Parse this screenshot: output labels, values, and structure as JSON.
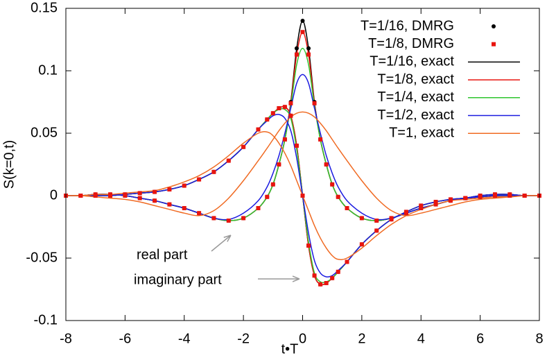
{
  "chart_data": {
    "type": "line",
    "xlabel": "t•T",
    "ylabel": "S(k=0,t)",
    "xlim": [
      -8,
      8
    ],
    "ylim": [
      -0.1,
      0.15
    ],
    "xticks": [
      -8,
      -6,
      -4,
      -2,
      0,
      2,
      4,
      6,
      8
    ],
    "yticks": [
      -0.1,
      -0.05,
      0,
      0.05,
      0.1,
      0.15
    ],
    "grid": false,
    "legend": "top-right",
    "annotations": [
      "real part",
      "imaginary part"
    ],
    "x": [
      -8,
      -7.5,
      -7,
      -6.5,
      -6,
      -5.5,
      -5,
      -4.5,
      -4,
      -3.5,
      -3,
      -2.5,
      -2,
      -1.5,
      -1.2,
      -1,
      -0.8,
      -0.6,
      -0.4,
      -0.2,
      0,
      0.2,
      0.4,
      0.6,
      0.8,
      1,
      1.2,
      1.5,
      2,
      2.5,
      3,
      3.5,
      4,
      4.5,
      5,
      5.5,
      6,
      6.5,
      7,
      7.5,
      8
    ],
    "series": [
      {
        "name": "T=1/16, DMRG",
        "color": "#000000",
        "style": "points",
        "marker": "circle",
        "values": [
          0,
          0,
          0.001,
          0.001,
          0,
          -0.002,
          -0.004,
          -0.007,
          -0.01,
          -0.014,
          -0.018,
          -0.02,
          -0.018,
          -0.01,
          -0.001,
          0.009,
          0.025,
          0.045,
          0.075,
          0.118,
          0.14,
          0.118,
          0.075,
          0.045,
          0.025,
          0.009,
          -0.001,
          -0.01,
          -0.018,
          -0.02,
          -0.018,
          -0.014,
          -0.01,
          -0.007,
          -0.004,
          -0.002,
          0,
          0.001,
          0.001,
          0,
          0
        ],
        "imag": [
          0,
          0,
          0,
          0,
          0.001,
          0.002,
          0.003,
          0.005,
          0.008,
          0.013,
          0.019,
          0.028,
          0.039,
          0.053,
          0.061,
          0.066,
          0.07,
          0.071,
          0.064,
          0.04,
          0,
          -0.04,
          -0.064,
          -0.071,
          -0.07,
          -0.066,
          -0.061,
          -0.053,
          -0.039,
          -0.028,
          -0.019,
          -0.013,
          -0.008,
          -0.005,
          -0.003,
          -0.002,
          -0.001,
          0,
          0,
          0,
          0
        ]
      },
      {
        "name": "T=1/8, DMRG",
        "color": "#e8150f",
        "style": "points",
        "marker": "square",
        "values": [
          0,
          0,
          0.001,
          0.001,
          0,
          -0.002,
          -0.004,
          -0.007,
          -0.01,
          -0.014,
          -0.018,
          -0.02,
          -0.018,
          -0.01,
          -0.001,
          0.009,
          0.025,
          0.045,
          0.074,
          0.113,
          0.131,
          0.113,
          0.074,
          0.045,
          0.025,
          0.009,
          -0.001,
          -0.01,
          -0.018,
          -0.02,
          -0.018,
          -0.014,
          -0.01,
          -0.007,
          -0.004,
          -0.002,
          0,
          0.001,
          0.001,
          0,
          0
        ],
        "imag": [
          0,
          0,
          0,
          0,
          0.001,
          0.002,
          0.003,
          0.005,
          0.008,
          0.013,
          0.019,
          0.028,
          0.039,
          0.053,
          0.061,
          0.066,
          0.07,
          0.071,
          0.064,
          0.04,
          0,
          -0.04,
          -0.064,
          -0.071,
          -0.07,
          -0.066,
          -0.061,
          -0.053,
          -0.039,
          -0.028,
          -0.019,
          -0.013,
          -0.008,
          -0.005,
          -0.003,
          -0.002,
          -0.001,
          0,
          0,
          0,
          0
        ]
      },
      {
        "name": "T=1/16, exact",
        "color": "#000000",
        "style": "line",
        "values": [
          0,
          0,
          0.001,
          0.001,
          0,
          -0.002,
          -0.004,
          -0.007,
          -0.01,
          -0.014,
          -0.018,
          -0.02,
          -0.018,
          -0.01,
          -0.001,
          0.009,
          0.025,
          0.045,
          0.075,
          0.118,
          0.14,
          0.118,
          0.075,
          0.045,
          0.025,
          0.009,
          -0.001,
          -0.01,
          -0.018,
          -0.02,
          -0.018,
          -0.014,
          -0.01,
          -0.007,
          -0.004,
          -0.002,
          0,
          0.001,
          0.001,
          0,
          0
        ],
        "imag": [
          0,
          0,
          0,
          0,
          0.001,
          0.002,
          0.003,
          0.005,
          0.008,
          0.013,
          0.019,
          0.028,
          0.039,
          0.053,
          0.061,
          0.066,
          0.07,
          0.071,
          0.064,
          0.04,
          0,
          -0.04,
          -0.064,
          -0.071,
          -0.07,
          -0.066,
          -0.061,
          -0.053,
          -0.039,
          -0.028,
          -0.019,
          -0.013,
          -0.008,
          -0.005,
          -0.003,
          -0.002,
          -0.001,
          0,
          0,
          0,
          0
        ]
      },
      {
        "name": "T=1/8, exact",
        "color": "#e8150f",
        "style": "line",
        "values": [
          0,
          0,
          0.001,
          0.001,
          0,
          -0.002,
          -0.004,
          -0.007,
          -0.01,
          -0.014,
          -0.018,
          -0.02,
          -0.018,
          -0.01,
          -0.001,
          0.009,
          0.025,
          0.045,
          0.074,
          0.113,
          0.131,
          0.113,
          0.074,
          0.045,
          0.025,
          0.009,
          -0.001,
          -0.01,
          -0.018,
          -0.02,
          -0.018,
          -0.014,
          -0.01,
          -0.007,
          -0.004,
          -0.002,
          0,
          0.001,
          0.001,
          0,
          0
        ],
        "imag": [
          0,
          0,
          0,
          0,
          0.001,
          0.002,
          0.003,
          0.005,
          0.008,
          0.013,
          0.019,
          0.028,
          0.039,
          0.053,
          0.061,
          0.066,
          0.07,
          0.071,
          0.064,
          0.04,
          0,
          -0.04,
          -0.064,
          -0.071,
          -0.07,
          -0.066,
          -0.061,
          -0.053,
          -0.039,
          -0.028,
          -0.019,
          -0.013,
          -0.008,
          -0.005,
          -0.003,
          -0.002,
          -0.001,
          0,
          0,
          0,
          0
        ]
      },
      {
        "name": "T=1/4, exact",
        "color": "#2ec42e",
        "style": "line",
        "values": [
          0,
          0,
          0.001,
          0.001,
          0,
          -0.002,
          -0.004,
          -0.007,
          -0.01,
          -0.014,
          -0.018,
          -0.02,
          -0.018,
          -0.01,
          -0.001,
          0.009,
          0.025,
          0.045,
          0.072,
          0.105,
          0.118,
          0.105,
          0.072,
          0.045,
          0.025,
          0.009,
          -0.001,
          -0.01,
          -0.018,
          -0.02,
          -0.018,
          -0.014,
          -0.01,
          -0.007,
          -0.004,
          -0.002,
          0,
          0.001,
          0.001,
          0,
          0
        ],
        "imag": [
          0,
          0,
          0,
          0,
          0.001,
          0.002,
          0.003,
          0.005,
          0.008,
          0.013,
          0.019,
          0.028,
          0.039,
          0.053,
          0.061,
          0.066,
          0.069,
          0.069,
          0.062,
          0.037,
          0,
          -0.037,
          -0.062,
          -0.069,
          -0.069,
          -0.066,
          -0.061,
          -0.053,
          -0.039,
          -0.028,
          -0.019,
          -0.013,
          -0.008,
          -0.005,
          -0.003,
          -0.002,
          -0.001,
          0,
          0,
          0,
          0
        ]
      },
      {
        "name": "T=1/2, exact",
        "color": "#1a1ae0",
        "style": "line",
        "values": [
          0,
          0,
          0.001,
          0.001,
          0,
          -0.002,
          -0.004,
          -0.007,
          -0.01,
          -0.014,
          -0.018,
          -0.019,
          -0.014,
          -0.004,
          0.007,
          0.018,
          0.032,
          0.05,
          0.07,
          0.09,
          0.097,
          0.09,
          0.07,
          0.05,
          0.032,
          0.018,
          0.007,
          -0.004,
          -0.014,
          -0.019,
          -0.018,
          -0.014,
          -0.01,
          -0.007,
          -0.004,
          -0.002,
          0,
          0.001,
          0.001,
          0,
          0
        ],
        "imag": [
          0,
          0,
          0,
          0,
          0.001,
          0.002,
          0.003,
          0.005,
          0.008,
          0.013,
          0.019,
          0.028,
          0.039,
          0.053,
          0.06,
          0.064,
          0.065,
          0.062,
          0.052,
          0.03,
          0,
          -0.03,
          -0.052,
          -0.062,
          -0.065,
          -0.064,
          -0.06,
          -0.053,
          -0.039,
          -0.028,
          -0.019,
          -0.013,
          -0.008,
          -0.005,
          -0.003,
          -0.002,
          -0.001,
          0,
          0,
          0,
          0
        ]
      },
      {
        "name": "T=1, exact",
        "color": "#f06a22",
        "style": "line",
        "values": [
          0,
          0,
          -0.001,
          -0.002,
          -0.003,
          -0.005,
          -0.008,
          -0.011,
          -0.014,
          -0.016,
          -0.012,
          -0.002,
          0.012,
          0.028,
          0.038,
          0.045,
          0.052,
          0.058,
          0.063,
          0.066,
          0.067,
          0.066,
          0.063,
          0.058,
          0.052,
          0.045,
          0.038,
          0.028,
          0.012,
          -0.002,
          -0.012,
          -0.016,
          -0.014,
          -0.011,
          -0.008,
          -0.005,
          -0.003,
          -0.002,
          -0.001,
          0,
          0
        ],
        "imag": [
          0,
          0,
          0.001,
          0.001,
          0.002,
          0.003,
          0.004,
          0.007,
          0.011,
          0.016,
          0.023,
          0.032,
          0.042,
          0.05,
          0.051,
          0.048,
          0.042,
          0.034,
          0.024,
          0.012,
          0,
          -0.012,
          -0.024,
          -0.034,
          -0.042,
          -0.048,
          -0.051,
          -0.05,
          -0.042,
          -0.032,
          -0.023,
          -0.016,
          -0.011,
          -0.007,
          -0.004,
          -0.003,
          -0.002,
          -0.001,
          -0.001,
          0,
          0
        ]
      }
    ]
  }
}
